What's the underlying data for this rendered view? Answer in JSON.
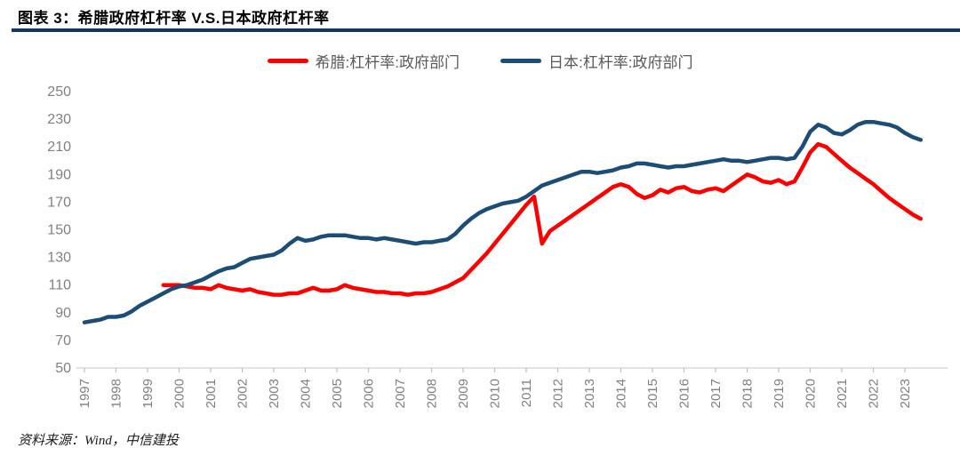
{
  "header": {
    "title": "图表 3：希腊政府杠杆率 V.S.日本政府杠杆率"
  },
  "source_note": "资料来源：Wind，中信建投",
  "colors": {
    "greece_line": "#fe0000",
    "japan_line": "#1b4d76",
    "title_rule": "#17365d",
    "axis_text": "#808080",
    "axis_line": "#d9d9d9",
    "tick_mark": "#bfbfbf",
    "legend_text": "#595959"
  },
  "legend": {
    "items": [
      {
        "label": "希腊:杠杆率:政府部门",
        "color": "#fe0000"
      },
      {
        "label": "日本:杠杆率:政府部门",
        "color": "#1b4d76"
      }
    ]
  },
  "chart_data": {
    "type": "line",
    "title": "图表 3：希腊政府杠杆率 V.S.日本政府杠杆率",
    "xlabel": "",
    "ylabel": "",
    "ylim": [
      50,
      250
    ],
    "y_ticks": [
      50,
      70,
      90,
      110,
      130,
      150,
      170,
      190,
      210,
      230,
      250
    ],
    "grid": false,
    "legend_position": "top",
    "x_unit": "quarterly",
    "x_start_year": 1997,
    "points_per_year": 4,
    "x_tick_labels": [
      "1997",
      "1998",
      "1999",
      "2000",
      "2001",
      "2002",
      "2003",
      "2004",
      "2005",
      "2006",
      "2007",
      "2008",
      "2009",
      "2010",
      "2011",
      "2012",
      "2013",
      "2014",
      "2015",
      "2016",
      "2017",
      "2018",
      "2019",
      "2020",
      "2021",
      "2022",
      "2023"
    ],
    "series": [
      {
        "name": "希腊:杠杆率:政府部门",
        "color": "#fe0000",
        "values": [
          null,
          null,
          null,
          null,
          null,
          null,
          null,
          null,
          null,
          null,
          110,
          110,
          110,
          109,
          108,
          108,
          107,
          110,
          108,
          107,
          106,
          107,
          105,
          104,
          103,
          103,
          104,
          104,
          106,
          108,
          106,
          106,
          107,
          110,
          108,
          107,
          106,
          105,
          105,
          104,
          104,
          103,
          104,
          104,
          105,
          107,
          109,
          112,
          115,
          121,
          127,
          133,
          140,
          147,
          154,
          161,
          168,
          174,
          140,
          149,
          153,
          157,
          161,
          165,
          169,
          173,
          177,
          181,
          183,
          181,
          176,
          173,
          175,
          179,
          177,
          180,
          181,
          178,
          177,
          179,
          180,
          178,
          182,
          186,
          190,
          188,
          185,
          184,
          186,
          183,
          185,
          195,
          206,
          212,
          210,
          205,
          200,
          195,
          191,
          187,
          183,
          178,
          173,
          169,
          165,
          161,
          158
        ]
      },
      {
        "name": "日本:杠杆率:政府部门",
        "color": "#1b4d76",
        "values": [
          83,
          84,
          85,
          87,
          87,
          88,
          91,
          95,
          98,
          101,
          104,
          107,
          109,
          110,
          112,
          114,
          117,
          120,
          122,
          123,
          126,
          129,
          130,
          131,
          132,
          135,
          140,
          144,
          142,
          143,
          145,
          146,
          146,
          146,
          145,
          144,
          144,
          143,
          144,
          143,
          142,
          141,
          140,
          141,
          141,
          142,
          143,
          147,
          153,
          158,
          162,
          165,
          167,
          169,
          170,
          171,
          174,
          178,
          182,
          184,
          186,
          188,
          190,
          192,
          192,
          191,
          192,
          193,
          195,
          196,
          198,
          198,
          197,
          196,
          195,
          196,
          196,
          197,
          198,
          199,
          200,
          201,
          200,
          200,
          199,
          200,
          201,
          202,
          202,
          201,
          202,
          210,
          221,
          226,
          224,
          220,
          219,
          222,
          226,
          228,
          228,
          227,
          226,
          224,
          220,
          217,
          215
        ]
      }
    ]
  }
}
